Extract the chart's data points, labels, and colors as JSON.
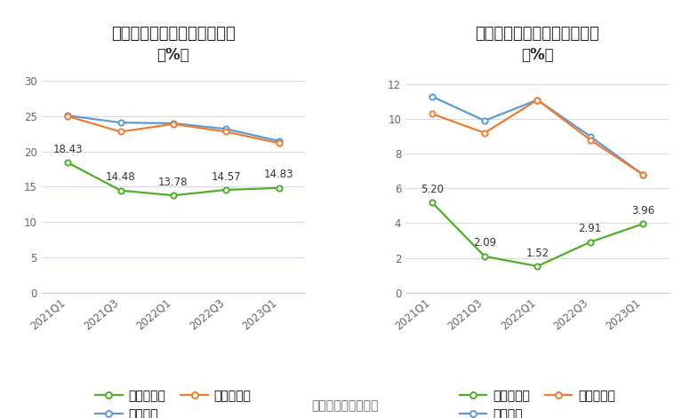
{
  "left_title": "晶华新材季度毛利率变化情况",
  "left_subtitle": "（%）",
  "right_title": "晶华新材季度净利率变化情况",
  "right_subtitle": "（%）",
  "source_text": "数据来源：恒生聚源",
  "x_labels": [
    "2021Q1",
    "2021Q3",
    "2022Q1",
    "2022Q3",
    "2023Q1"
  ],
  "left_company": [
    18.43,
    14.48,
    13.78,
    14.57,
    14.83
  ],
  "left_company_labels": [
    "18.43",
    "14.48",
    "13.78",
    "14.57",
    "14.83"
  ],
  "left_industry_avg": [
    25.1,
    24.1,
    24.0,
    23.2,
    21.5
  ],
  "left_industry_med": [
    25.0,
    22.8,
    23.9,
    22.8,
    21.2
  ],
  "right_company": [
    5.2,
    2.09,
    1.52,
    2.91,
    3.96
  ],
  "right_company_labels": [
    "5.20",
    "2.09",
    "1.52",
    "2.91",
    "3.96"
  ],
  "right_industry_avg": [
    11.3,
    9.9,
    11.1,
    9.0,
    6.8
  ],
  "right_industry_med": [
    10.3,
    9.2,
    11.1,
    8.8,
    6.8
  ],
  "left_ylim": [
    0,
    32
  ],
  "left_yticks": [
    0,
    5,
    10,
    15,
    20,
    25,
    30
  ],
  "right_ylim": [
    0,
    13
  ],
  "right_yticks": [
    0,
    2,
    4,
    6,
    8,
    10,
    12
  ],
  "company_color": "#4daf27",
  "industry_avg_color": "#5b9bd5",
  "industry_med_color": "#ed7d31",
  "bg_color": "#ffffff",
  "grid_color": "#d9d9e8",
  "label_fontsize": 8.5,
  "title_fontsize": 13,
  "legend_fontsize": 10,
  "tick_fontsize": 8.5,
  "source_fontsize": 10
}
